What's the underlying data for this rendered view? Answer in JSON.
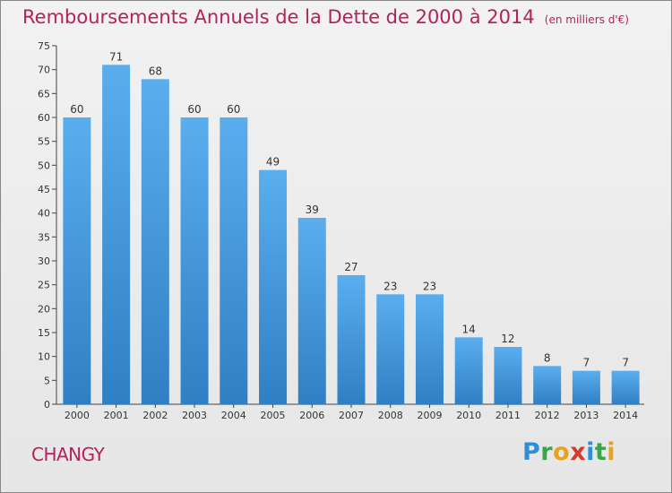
{
  "chart_data": {
    "type": "bar",
    "title": "Remboursements Annuels de la Dette de 2000 à 2014",
    "subtitle": "(en milliers d'€)",
    "categories": [
      "2000",
      "2001",
      "2002",
      "2003",
      "2004",
      "2005",
      "2006",
      "2007",
      "2008",
      "2009",
      "2010",
      "2011",
      "2012",
      "2013",
      "2014"
    ],
    "values": [
      60,
      71,
      68,
      60,
      60,
      49,
      39,
      27,
      23,
      23,
      14,
      12,
      8,
      7,
      7
    ],
    "ylim": [
      0,
      75
    ],
    "yticks": [
      0,
      5,
      10,
      15,
      20,
      25,
      30,
      35,
      40,
      45,
      50,
      55,
      60,
      65,
      70,
      75
    ],
    "xlabel": "",
    "ylabel": "",
    "grid": false,
    "bar_color": "#3f92d8"
  },
  "footer": {
    "commune": "CHANGY",
    "logo_letters": [
      {
        "char": "P",
        "color": "#2e8fd6"
      },
      {
        "char": "r",
        "color": "#3aa64a"
      },
      {
        "char": "o",
        "color": "#e8a21c"
      },
      {
        "char": "x",
        "color": "#d63a2e"
      },
      {
        "char": "i",
        "color": "#2e8fd6"
      },
      {
        "char": "t",
        "color": "#3aa64a"
      },
      {
        "char": "i",
        "color": "#e8a21c"
      }
    ]
  }
}
